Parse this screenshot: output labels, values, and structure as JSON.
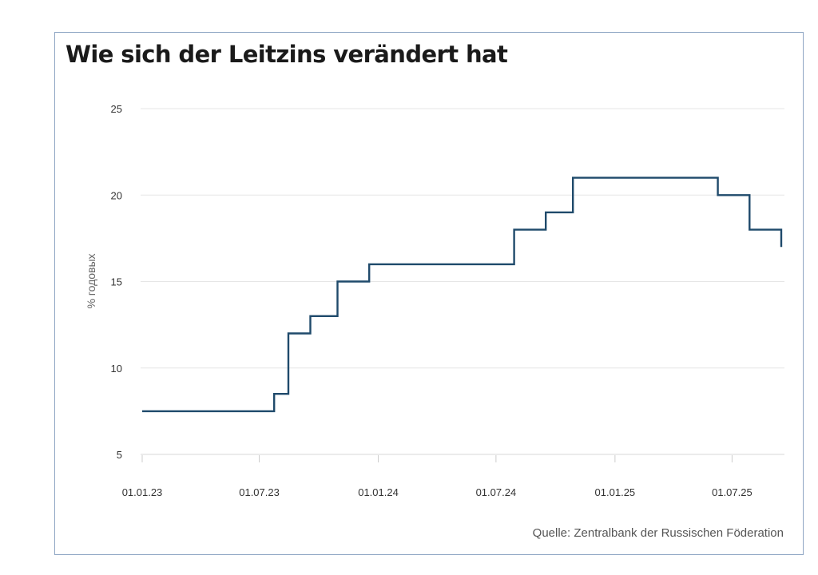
{
  "chart_data": {
    "type": "line",
    "title": "Wie sich der Leitzins verändert hat",
    "ylabel": "% годовых",
    "source": "Quelle: Zentralbank der Russischen Föderation",
    "ylim": [
      5,
      25
    ],
    "yticks": [
      5,
      10,
      15,
      20,
      25
    ],
    "xlim": [
      "2023-01-01",
      "2025-09-20"
    ],
    "xticks": [
      "2023-01-01",
      "2023-07-01",
      "2024-01-01",
      "2024-07-01",
      "2025-01-01",
      "2025-07-01"
    ],
    "xtick_labels": [
      "01.01.23",
      "01.07.23",
      "01.01.24",
      "01.07.24",
      "01.01.25",
      "01.07.25"
    ],
    "grid": "horizontal",
    "line_color": "#1f4a6b",
    "step": true,
    "series": [
      {
        "x": [
          "2023-01-01",
          "2023-07-24",
          "2023-08-15",
          "2023-09-18",
          "2023-10-30",
          "2023-12-18",
          "2024-07-29",
          "2024-09-16",
          "2024-10-28",
          "2025-06-09",
          "2025-07-28",
          "2025-09-15",
          "2025-09-15"
        ],
        "y": [
          7.5,
          8.5,
          12,
          13,
          15,
          16,
          18,
          19,
          21,
          20,
          18,
          17,
          17
        ]
      }
    ]
  }
}
